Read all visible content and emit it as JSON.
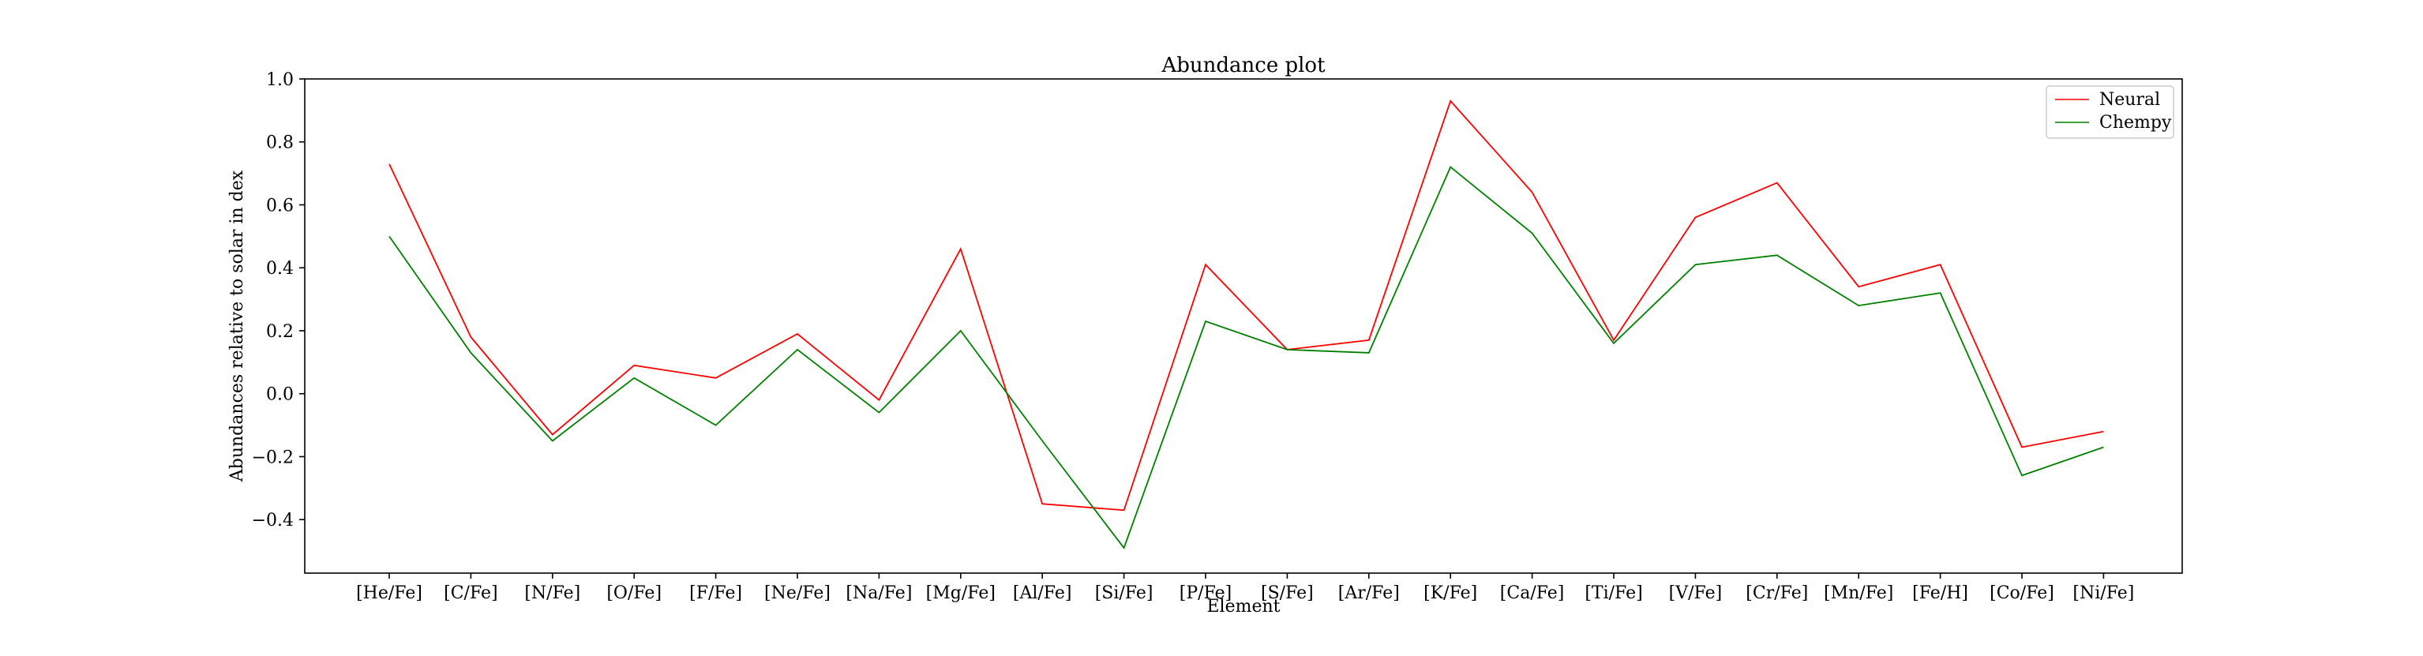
{
  "chart_data": {
    "type": "line",
    "title": "Abundance plot",
    "xlabel": "Element",
    "ylabel": "Abundances relative to solar in dex",
    "categories": [
      "[He/Fe]",
      "[C/Fe]",
      "[N/Fe]",
      "[O/Fe]",
      "[F/Fe]",
      "[Ne/Fe]",
      "[Na/Fe]",
      "[Mg/Fe]",
      "[Al/Fe]",
      "[Si/Fe]",
      "[P/Fe]",
      "[S/Fe]",
      "[Ar/Fe]",
      "[K/Fe]",
      "[Ca/Fe]",
      "[Ti/Fe]",
      "[V/Fe]",
      "[Cr/Fe]",
      "[Mn/Fe]",
      "[Fe/H]",
      "[Co/Fe]",
      "[Ni/Fe]"
    ],
    "ylim": [
      -0.57,
      1.0
    ],
    "yticks": [
      "1.0",
      "0.8",
      "0.6",
      "0.4",
      "0.2",
      "0.0",
      "−0.2",
      "−0.4"
    ],
    "ytick_values": [
      1.0,
      0.8,
      0.6,
      0.4,
      0.2,
      0.0,
      -0.2,
      -0.4
    ],
    "grid": false,
    "legend_position": "top-right",
    "series": [
      {
        "name": "Neural",
        "color": "#ff0000",
        "values": [
          0.73,
          0.18,
          -0.13,
          0.09,
          0.05,
          0.19,
          -0.02,
          0.46,
          -0.35,
          -0.37,
          0.41,
          0.14,
          0.17,
          0.93,
          0.64,
          0.17,
          0.56,
          0.67,
          0.34,
          0.41,
          -0.17,
          -0.12
        ]
      },
      {
        "name": "Chempy",
        "color": "#008000",
        "values": [
          0.5,
          0.13,
          -0.15,
          0.05,
          -0.1,
          0.14,
          -0.06,
          0.2,
          -0.15,
          -0.49,
          0.23,
          0.14,
          0.13,
          0.72,
          0.51,
          0.16,
          0.41,
          0.44,
          0.28,
          0.32,
          -0.26,
          -0.17
        ]
      }
    ]
  }
}
